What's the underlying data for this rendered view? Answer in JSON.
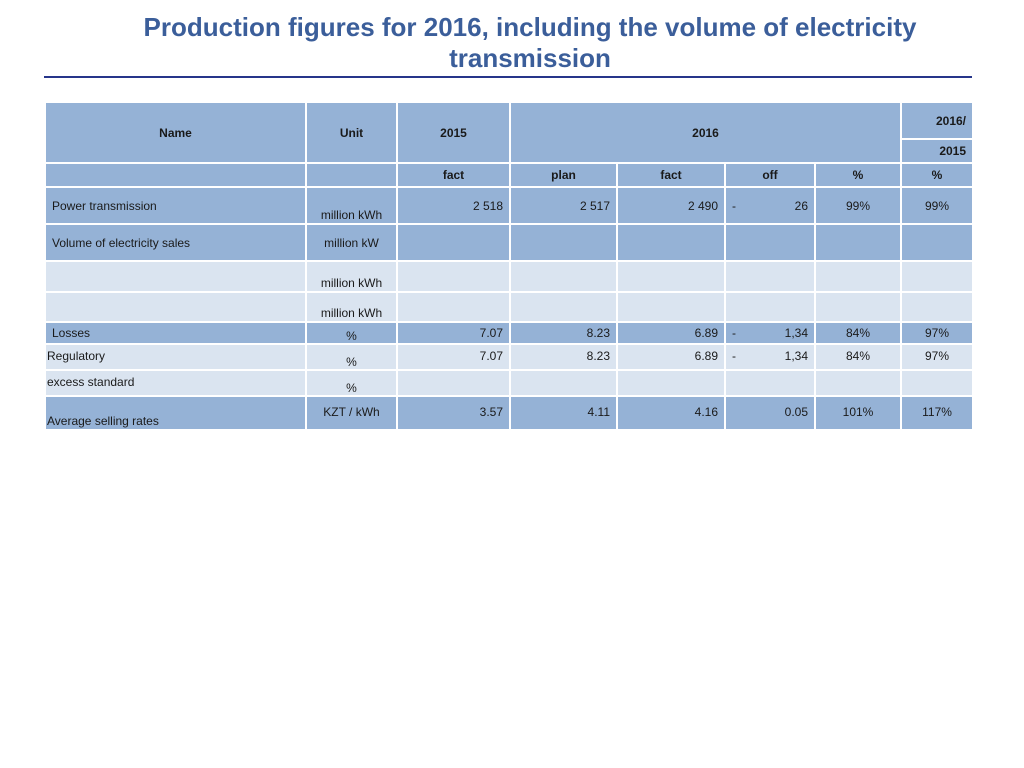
{
  "title": "Production figures for 2016, including the volume of electricity transmission",
  "header": {
    "name": "Name",
    "unit": "Unit",
    "y2015": "2015",
    "y2016": "2016",
    "ratio_top": "2016/",
    "ratio_bottom": "2015",
    "fact": "fact",
    "plan": "plan",
    "fact2": "fact",
    "off": "off",
    "pct": "%",
    "pct2": "%"
  },
  "rows": [
    {
      "name": "Power transmission",
      "unit": "million kWh",
      "fact2015": "2 518",
      "plan2016": "2 517",
      "fact2016": "2 490",
      "off_sign": "-",
      "off": "26",
      "pct": "99%",
      "ratio": "99%"
    },
    {
      "name": "Volume of electricity sales",
      "unit": "million kW",
      "fact2015": "",
      "plan2016": "",
      "fact2016": "",
      "off_sign": "",
      "off": "",
      "pct": "",
      "ratio": ""
    },
    {
      "name": "",
      "unit": "million kWh",
      "fact2015": "",
      "plan2016": "",
      "fact2016": "",
      "off_sign": "",
      "off": "",
      "pct": "",
      "ratio": ""
    },
    {
      "name": "",
      "unit": "million kWh",
      "fact2015": "",
      "plan2016": "",
      "fact2016": "",
      "off_sign": "",
      "off": "",
      "pct": "",
      "ratio": ""
    },
    {
      "name": "Losses",
      "unit": "%",
      "fact2015": "7.07",
      "plan2016": "8.23",
      "fact2016": "6.89",
      "off_sign": "-",
      "off": "1,34",
      "pct": "84%",
      "ratio": "97%"
    },
    {
      "name": "Regulatory",
      "unit": "%",
      "fact2015": "7.07",
      "plan2016": "8.23",
      "fact2016": "6.89",
      "off_sign": "-",
      "off": "1,34",
      "pct": "84%",
      "ratio": "97%"
    },
    {
      "name": "excess standard",
      "unit": "%",
      "fact2015": "",
      "plan2016": "",
      "fact2016": "",
      "off_sign": "",
      "off": "",
      "pct": "",
      "ratio": ""
    },
    {
      "name": "Average selling rates",
      "unit": "KZT / kWh",
      "fact2015": "3.57",
      "plan2016": "4.11",
      "fact2016": "4.16",
      "off_sign": "",
      "off": "0.05",
      "pct": "101%",
      "ratio": "117%"
    }
  ]
}
